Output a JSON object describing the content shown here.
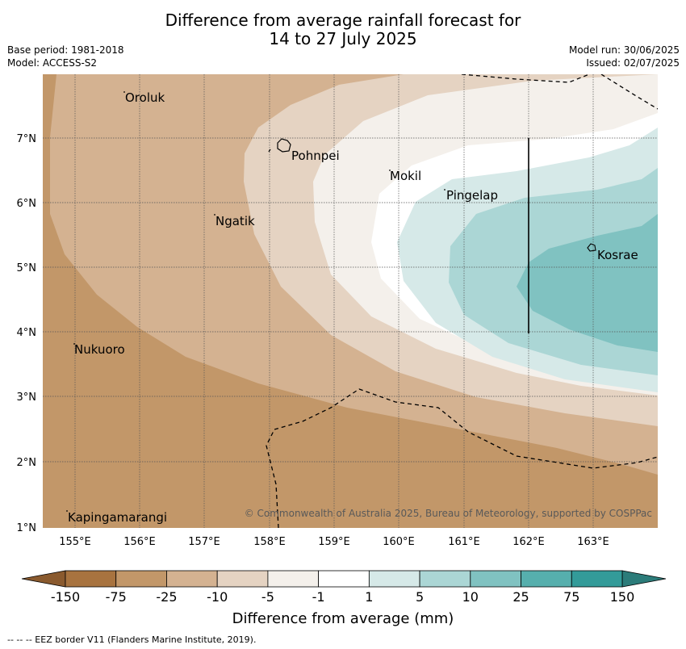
{
  "title_line1": "Difference from average rainfall forecast for",
  "title_line2": "14 to 27 July 2025",
  "base_period": "Base period: 1981-2018",
  "model": "Model: ACCESS-S2",
  "model_run": "Model run: 30/06/2025",
  "issued": "Issued: 02/07/2025",
  "credit": "© Commonwealth of Australia 2025, Bureau of Meteorology, supported by COSPPac",
  "footnote": "-- -- -- EEZ border V11 (Flanders Marine Institute, 2019).",
  "colorbar": {
    "title": "Difference from average (mm)",
    "labels": [
      "-150",
      "-75",
      "-25",
      "-10",
      "-5",
      "-1",
      "1",
      "5",
      "10",
      "25",
      "75",
      "150"
    ],
    "colors": [
      "#a8733f",
      "#c29769",
      "#d4b291",
      "#e5d3c2",
      "#f4f0eb",
      "#ffffff",
      "#d6e9e8",
      "#abd6d5",
      "#80c2c1",
      "#56afad",
      "#339b99"
    ],
    "end_low_color": "#8a5a2e",
    "end_high_color": "#2c7c7a"
  },
  "axes": {
    "lon_ticks": [
      "155°E",
      "156°E",
      "157°E",
      "158°E",
      "159°E",
      "160°E",
      "161°E",
      "162°E",
      "163°E"
    ],
    "lat_ticks": [
      "7°N",
      "6°N",
      "5°N",
      "4°N",
      "3°N",
      "2°N",
      "1°N"
    ]
  },
  "places": {
    "oroluk": "Oroluk",
    "pohnpei": "Pohnpei",
    "mokil": "Mokil",
    "pingelap": "Pingelap",
    "ngatik": "Ngatik",
    "kosrae": "Kosrae",
    "nukuoro": "Nukuoro",
    "kapingamarangi": "Kapingamarangi"
  }
}
